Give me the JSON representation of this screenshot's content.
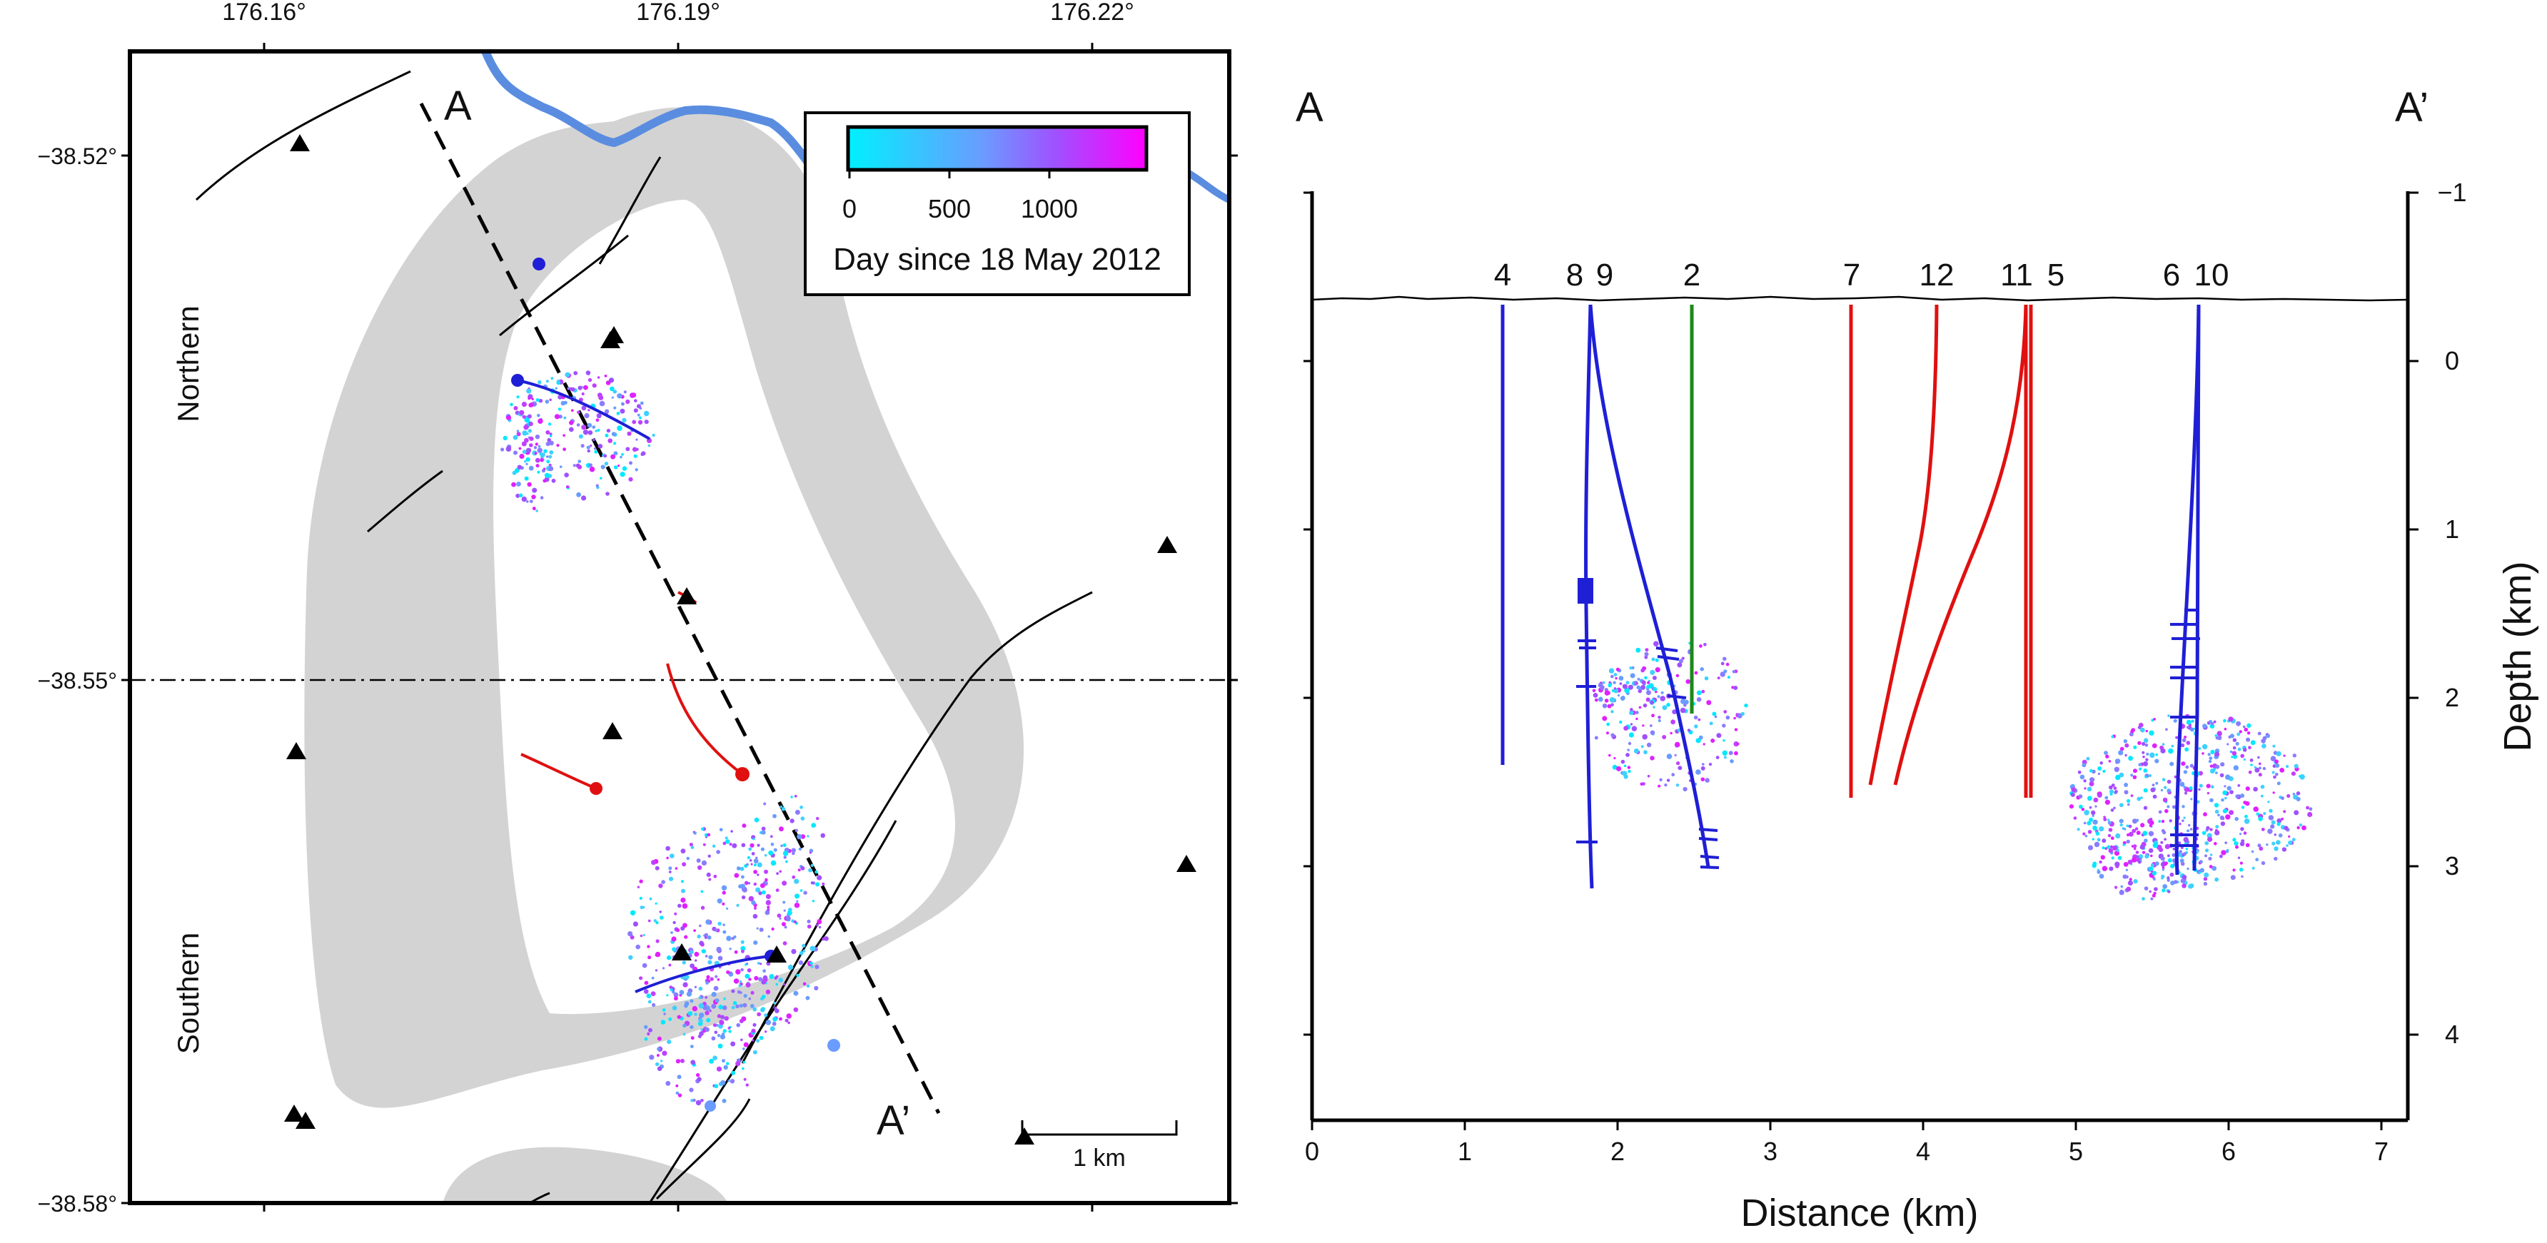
{
  "map": {
    "lon_ticks": [
      "176.16°",
      "176.19°",
      "176.22°"
    ],
    "lat_ticks": [
      "−38.52°",
      "−38.55°",
      "−38.58°"
    ],
    "profile_start": "A",
    "profile_end": "A’",
    "region_north": "Northern",
    "region_south": "Southern",
    "scale_bar": "1 km",
    "colorbar": {
      "ticks": [
        "0",
        "500",
        "1000"
      ],
      "label": "Day since 18 May 2012",
      "color_low": "#00f0ff",
      "color_high": "#ff00ff"
    },
    "colors": {
      "field": "#d3d3d3",
      "river": "#5a8de0",
      "fault": "#000000"
    }
  },
  "section": {
    "label_start": "A",
    "label_end": "A’",
    "xlabel": "Distance (km)",
    "ylabel": "Depth (km)",
    "x_ticks": [
      "0",
      "1",
      "2",
      "3",
      "4",
      "5",
      "6",
      "7"
    ],
    "y_ticks": [
      "−1",
      "0",
      "1",
      "2",
      "3",
      "4"
    ],
    "well_labels": [
      {
        "text": "4",
        "color": "#1f1fd6"
      },
      {
        "text": "8",
        "color": "#1f1fd6"
      },
      {
        "text": "9",
        "color": "#1f1fd6"
      },
      {
        "text": "2",
        "color": "#1a8a1a"
      },
      {
        "text": "7",
        "color": "#e01010"
      },
      {
        "text": "12",
        "color": "#e01010"
      },
      {
        "text": "11",
        "color": "#e01010"
      },
      {
        "text": "5",
        "color": "#e01010"
      },
      {
        "text": "6",
        "color": "#1f1fd6"
      },
      {
        "text": "10",
        "color": "#1f1fd6"
      }
    ]
  }
}
